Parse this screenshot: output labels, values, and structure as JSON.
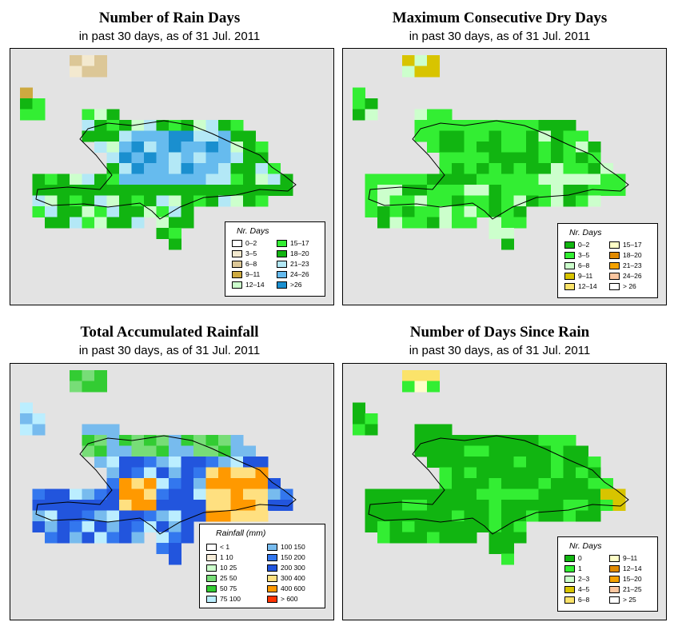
{
  "subtitle": "in past 30 days, as of  31 Jul. 2011",
  "panels": [
    {
      "title": "Number of Rain Days",
      "legend_title": "Nr. Days",
      "background": "#e3e3e3",
      "legend": [
        {
          "label": "0–2",
          "color": "#ffffff"
        },
        {
          "label": "3–5",
          "color": "#f3e9cf"
        },
        {
          "label": "6–8",
          "color": "#dcc797"
        },
        {
          "label": "9–11",
          "color": "#cda940"
        },
        {
          "label": "12–14",
          "color": "#ccffcc"
        },
        {
          "label": "15–17",
          "color": "#33ee33"
        },
        {
          "label": "18–20",
          "color": "#11b511"
        },
        {
          "label": "21–23",
          "color": "#b3e8f6"
        },
        {
          "label": "24–26",
          "color": "#66bbee"
        },
        {
          "label": ">26",
          "color": "#1a8fcf"
        }
      ]
    },
    {
      "title": "Maximum Consecutive Dry Days",
      "legend_title": "Nr. Days",
      "legend": [
        {
          "label": "0–2",
          "color": "#11b511"
        },
        {
          "label": "3–5",
          "color": "#33ee33"
        },
        {
          "label": "6–8",
          "color": "#ccffcc"
        },
        {
          "label": "9–11",
          "color": "#d8c400"
        },
        {
          "label": "12–14",
          "color": "#fbe36a"
        },
        {
          "label": "15–17",
          "color": "#ffffc8"
        },
        {
          "label": "18–20",
          "color": "#e08a00"
        },
        {
          "label": "21–23",
          "color": "#f5a200"
        },
        {
          "label": "24–26",
          "color": "#fbc6a0"
        },
        {
          "label": "> 26",
          "color": "#ffffff"
        }
      ]
    },
    {
      "title": "Total Accumulated Rainfall",
      "legend_title": "Rainfall (mm)",
      "legend": [
        {
          "label": "< 1",
          "color": "#ffffff"
        },
        {
          "label": "1   10",
          "color": "#f6ecd8"
        },
        {
          "label": "10   25",
          "color": "#ccffcc"
        },
        {
          "label": "25   50",
          "color": "#77dd77"
        },
        {
          "label": "50   75",
          "color": "#33cc33"
        },
        {
          "label": "75  100",
          "color": "#bbeeff"
        },
        {
          "label": "100  150",
          "color": "#77bbee"
        },
        {
          "label": "150  200",
          "color": "#3377ee"
        },
        {
          "label": "200  300",
          "color": "#2255dd"
        },
        {
          "label": "300  400",
          "color": "#ffe080"
        },
        {
          "label": "400  600",
          "color": "#ff9900"
        },
        {
          "label": "> 600",
          "color": "#ff3300"
        }
      ]
    },
    {
      "title": "Number of Days Since Rain",
      "legend_title": "Nr. Days",
      "legend": [
        {
          "label": "0",
          "color": "#11b511"
        },
        {
          "label": "1",
          "color": "#33ee33"
        },
        {
          "label": "2–3",
          "color": "#ccffcc"
        },
        {
          "label": "4–5",
          "color": "#d8c400"
        },
        {
          "label": "6–8",
          "color": "#fbe36a"
        },
        {
          "label": "9–11",
          "color": "#ffffc8"
        },
        {
          "label": "12–14",
          "color": "#e08a00"
        },
        {
          "label": "15–20",
          "color": "#f5a200"
        },
        {
          "label": "21–25",
          "color": "#fbc6a0"
        },
        {
          "label": "> 25",
          "color": "#ffffff"
        }
      ]
    }
  ]
}
